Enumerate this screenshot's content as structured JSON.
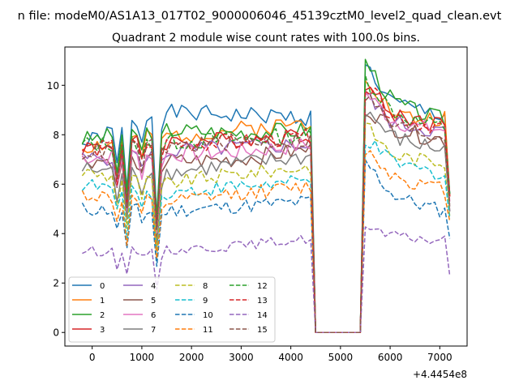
{
  "figure": {
    "suptitle": "n file: modeM0/AS1A13_017T02_9000006046_45139cztM0_level2_quad_clean.evt"
  },
  "chart_data": {
    "type": "line",
    "title": "Quadrant 2 module wise count rates with 100.0s bins.",
    "xlabel": "",
    "ylabel": "",
    "x_offset_label": "+4.4454e8",
    "xlim": [
      -550,
      7550
    ],
    "ylim": [
      -0.55,
      11.55
    ],
    "xticks": [
      0,
      1000,
      2000,
      3000,
      4000,
      5000,
      6000,
      7000
    ],
    "xtick_labels": [
      "0",
      "1000",
      "2000",
      "3000",
      "4000",
      "5000",
      "6000",
      "7000"
    ],
    "yticks": [
      0,
      2,
      4,
      6,
      8,
      10
    ],
    "ytick_labels": [
      "0",
      "2",
      "4",
      "6",
      "8",
      "10"
    ],
    "grid": false,
    "legend": {
      "position": "lower-left",
      "columns": 4
    },
    "x_range": {
      "start": -200,
      "step": 100,
      "count": 75
    },
    "gap": {
      "start_index": 47,
      "end_index": 56,
      "value": 0
    },
    "series": [
      {
        "name": "0",
        "color": "#1f77b4",
        "dashed": false,
        "plateau1": [
          7.6,
          8.9,
          8.8,
          8.7
        ],
        "plateau2": [
          10.8,
          9.3,
          9.0,
          8.8
        ],
        "amp": 0.35,
        "seed": 1
      },
      {
        "name": "1",
        "color": "#ff7f0e",
        "dashed": false,
        "plateau1": [
          7.5,
          7.9,
          8.2,
          8.5
        ],
        "plateau2": [
          10.5,
          8.9,
          8.6,
          8.7
        ],
        "amp": 0.35,
        "seed": 2
      },
      {
        "name": "2",
        "color": "#2ca02c",
        "dashed": false,
        "plateau1": [
          7.8,
          8.2,
          8.1,
          8.2
        ],
        "plateau2": [
          11.0,
          9.4,
          8.9,
          8.6
        ],
        "amp": 0.35,
        "seed": 3
      },
      {
        "name": "3",
        "color": "#d62728",
        "dashed": false,
        "plateau1": [
          7.5,
          7.7,
          7.8,
          8.0
        ],
        "plateau2": [
          10.1,
          8.8,
          8.6,
          8.4
        ],
        "amp": 0.35,
        "seed": 4
      },
      {
        "name": "4",
        "color": "#9467bd",
        "dashed": false,
        "plateau1": [
          7.0,
          7.3,
          7.5,
          7.6
        ],
        "plateau2": [
          9.6,
          8.5,
          8.3,
          8.1
        ],
        "amp": 0.35,
        "seed": 5
      },
      {
        "name": "5",
        "color": "#8c564b",
        "dashed": false,
        "plateau1": [
          7.0,
          6.9,
          7.0,
          7.4
        ],
        "plateau2": [
          9.1,
          8.3,
          8.0,
          7.8
        ],
        "amp": 0.35,
        "seed": 6
      },
      {
        "name": "6",
        "color": "#e377c2",
        "dashed": false,
        "plateau1": [
          7.1,
          7.2,
          7.3,
          7.6
        ],
        "plateau2": [
          9.7,
          8.6,
          8.3,
          8.2
        ],
        "amp": 0.35,
        "seed": 7
      },
      {
        "name": "7",
        "color": "#7f7f7f",
        "dashed": false,
        "plateau1": [
          6.6,
          6.4,
          6.8,
          7.1
        ],
        "plateau2": [
          9.0,
          7.9,
          7.6,
          7.4
        ],
        "amp": 0.35,
        "seed": 8
      },
      {
        "name": "8",
        "color": "#bcbd22",
        "dashed": true,
        "plateau1": [
          6.5,
          6.0,
          6.4,
          6.7
        ],
        "plateau2": [
          8.4,
          7.2,
          7.0,
          6.9
        ],
        "amp": 0.3,
        "seed": 9
      },
      {
        "name": "9",
        "color": "#17becf",
        "dashed": true,
        "plateau1": [
          6.0,
          5.6,
          5.9,
          6.1
        ],
        "plateau2": [
          7.8,
          6.9,
          6.6,
          6.4
        ],
        "amp": 0.3,
        "seed": 10
      },
      {
        "name": "10",
        "color": "#1f77b4",
        "dashed": true,
        "plateau1": [
          5.0,
          4.9,
          5.1,
          5.3
        ],
        "plateau2": [
          6.9,
          5.6,
          5.2,
          4.9
        ],
        "amp": 0.3,
        "seed": 11
      },
      {
        "name": "11",
        "color": "#ff7f0e",
        "dashed": true,
        "plateau1": [
          5.6,
          5.2,
          5.6,
          5.9
        ],
        "plateau2": [
          7.4,
          6.4,
          6.0,
          5.8
        ],
        "amp": 0.3,
        "seed": 12
      },
      {
        "name": "12",
        "color": "#2ca02c",
        "dashed": true,
        "plateau1": [
          7.6,
          7.7,
          7.8,
          8.0
        ],
        "plateau2": [
          10.3,
          9.0,
          8.5,
          8.3
        ],
        "amp": 0.35,
        "seed": 13
      },
      {
        "name": "13",
        "color": "#d62728",
        "dashed": true,
        "plateau1": [
          7.4,
          7.6,
          7.7,
          7.9
        ],
        "plateau2": [
          10.0,
          8.8,
          8.5,
          8.3
        ],
        "amp": 0.35,
        "seed": 14
      },
      {
        "name": "14",
        "color": "#9467bd",
        "dashed": true,
        "plateau1": [
          3.3,
          3.3,
          3.5,
          3.8
        ],
        "plateau2": [
          4.2,
          3.9,
          3.8,
          3.7
        ],
        "amp": 0.2,
        "seed": 15
      },
      {
        "name": "15",
        "color": "#8c564b",
        "dashed": true,
        "plateau1": [
          7.3,
          7.5,
          7.7,
          7.8
        ],
        "plateau2": [
          9.6,
          8.4,
          8.1,
          7.9
        ],
        "amp": 0.35,
        "seed": 16
      }
    ],
    "dips": [
      {
        "index": 7,
        "factor": 0.82
      },
      {
        "index": 9,
        "factor": 0.68
      },
      {
        "index": 12,
        "factor": 0.9
      },
      {
        "index": 15,
        "factor": 0.55
      },
      {
        "index": 16,
        "factor": 0.96
      }
    ],
    "series_end_values": [
      5.6,
      5.5,
      5.6,
      5.5,
      4.9,
      5.1,
      5.3,
      4.9,
      4.7,
      4.6,
      3.8,
      4.5,
      5.6,
      5.5,
      2.3,
      5.2
    ]
  }
}
